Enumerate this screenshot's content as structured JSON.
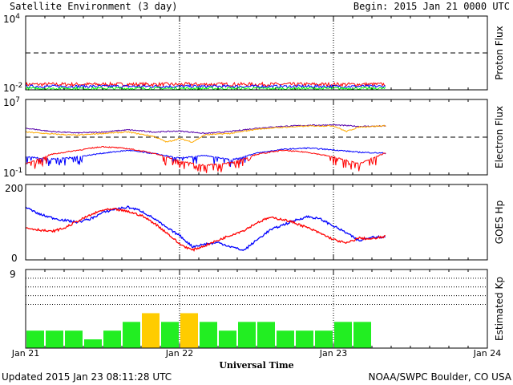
{
  "header": {
    "title": "Satellite Environment (3 day)",
    "begin": "Begin:  2015 Jan 21 0000 UTC"
  },
  "footer": {
    "updated": "Updated 2015 Jan 23 08:11:28 UTC",
    "credit": "NOAA/SWPC Boulder, CO USA"
  },
  "colors": {
    "red": "#ff0000",
    "blue": "#0000ff",
    "green": "#00ff00",
    "orange": "#ffaa00",
    "purple": "#5500aa",
    "kp_green": "#22ee22",
    "kp_yellow": "#ffcc00"
  },
  "chart_data": [
    {
      "type": "line",
      "ylabel": "Proton Flux",
      "yscale": "log",
      "ylim": [
        0.01,
        10000
      ],
      "y_ticks": [
        {
          "base": "10",
          "exp": "4"
        },
        {
          "base": "10",
          "exp": "-2"
        }
      ],
      "threshold": 10,
      "x_range_hours": [
        0,
        72
      ],
      "data_end_hour": 56.2,
      "series": [
        {
          "color": "red",
          "base_level": 0.028,
          "noise": 0.15
        },
        {
          "color": "blue",
          "base_level": 0.019,
          "noise": 0.12
        },
        {
          "color": "green",
          "base_level": 0.013,
          "noise": 0.1
        }
      ]
    },
    {
      "type": "line",
      "ylabel": "Electron Flux",
      "yscale": "log",
      "ylim": [
        0.1,
        10000000
      ],
      "y_ticks": [
        {
          "base": "10",
          "exp": "7"
        },
        {
          "base": "10",
          "exp": "-1"
        }
      ],
      "threshold": 1000,
      "x_range_hours": [
        0,
        72
      ],
      "data_end_hour": 56.2,
      "series": [
        {
          "color": "purple",
          "x": [
            0,
            4,
            8,
            12,
            16,
            20,
            24,
            28,
            32,
            36,
            40,
            44,
            48,
            52,
            56
          ],
          "y": [
            9000,
            4000,
            2800,
            3500,
            6000,
            3500,
            4500,
            2500,
            4000,
            9000,
            14000,
            18000,
            20000,
            14000,
            15000
          ]
        },
        {
          "color": "orange",
          "x": [
            0,
            4,
            8,
            12,
            16,
            20,
            22,
            24,
            26,
            28,
            32,
            36,
            40,
            44,
            48,
            50,
            52,
            56
          ],
          "y": [
            3500,
            2200,
            1600,
            2500,
            3500,
            1200,
            300,
            700,
            300,
            1800,
            2500,
            7000,
            11000,
            15000,
            16000,
            4000,
            12000,
            16000
          ]
        },
        {
          "color": "blue",
          "x": [
            0,
            4,
            8,
            12,
            16,
            20,
            24,
            28,
            32,
            36,
            40,
            44,
            48,
            52,
            56
          ],
          "y": [
            8,
            5,
            8,
            20,
            40,
            18,
            6,
            12,
            4,
            20,
            50,
            70,
            45,
            25,
            20
          ]
        },
        {
          "color": "red",
          "x": [
            0,
            4,
            8,
            12,
            16,
            20,
            24,
            28,
            32,
            36,
            40,
            44,
            48,
            52,
            56
          ],
          "y": [
            1.5,
            15,
            40,
            100,
            60,
            20,
            3,
            1,
            2,
            15,
            40,
            25,
            8,
            1.5,
            20
          ]
        }
      ]
    },
    {
      "type": "line",
      "ylabel": "GOES Hp",
      "ylim": [
        0,
        200
      ],
      "y_ticks": [
        "200",
        "0"
      ],
      "x_range_hours": [
        0,
        72
      ],
      "data_end_hour": 56.2,
      "series": [
        {
          "color": "blue",
          "x": [
            0,
            2,
            4,
            6,
            8,
            10,
            12,
            14,
            16,
            18,
            20,
            22,
            24,
            26,
            28,
            30,
            32,
            34,
            36,
            38,
            40,
            42,
            44,
            46,
            48,
            50,
            52,
            54,
            56
          ],
          "y": [
            140,
            122,
            112,
            105,
            100,
            108,
            125,
            135,
            140,
            130,
            110,
            85,
            65,
            35,
            42,
            46,
            35,
            25,
            52,
            78,
            92,
            105,
            115,
            108,
            90,
            72,
            50,
            62,
            60
          ]
        },
        {
          "color": "red",
          "x": [
            0,
            2,
            4,
            6,
            8,
            10,
            12,
            14,
            16,
            18,
            20,
            22,
            24,
            26,
            28,
            30,
            32,
            34,
            36,
            38,
            40,
            42,
            44,
            46,
            48,
            50,
            52,
            54,
            56
          ],
          "y": [
            85,
            80,
            75,
            84,
            102,
            118,
            132,
            134,
            128,
            118,
            98,
            72,
            42,
            26,
            38,
            52,
            66,
            78,
            98,
            112,
            108,
            98,
            85,
            70,
            54,
            44,
            58,
            55,
            62
          ]
        }
      ]
    },
    {
      "type": "bar",
      "ylabel": "Estimated Kp",
      "ylim": [
        0,
        9
      ],
      "y_ticks": [
        "9"
      ],
      "x_range_hours": [
        0,
        72
      ],
      "gridlines": [
        5,
        6,
        7,
        8,
        9
      ],
      "values": [
        2,
        2,
        2,
        1,
        2,
        3,
        4,
        3,
        4,
        3,
        2,
        3,
        3,
        2,
        2,
        2,
        3,
        3
      ],
      "storm_threshold": 4
    }
  ],
  "x_axis": {
    "label": "Universal Time",
    "ticks": [
      "Jan 21",
      "Jan 22",
      "Jan 23",
      "Jan 24"
    ],
    "day_lines_hours": [
      24,
      48
    ]
  }
}
